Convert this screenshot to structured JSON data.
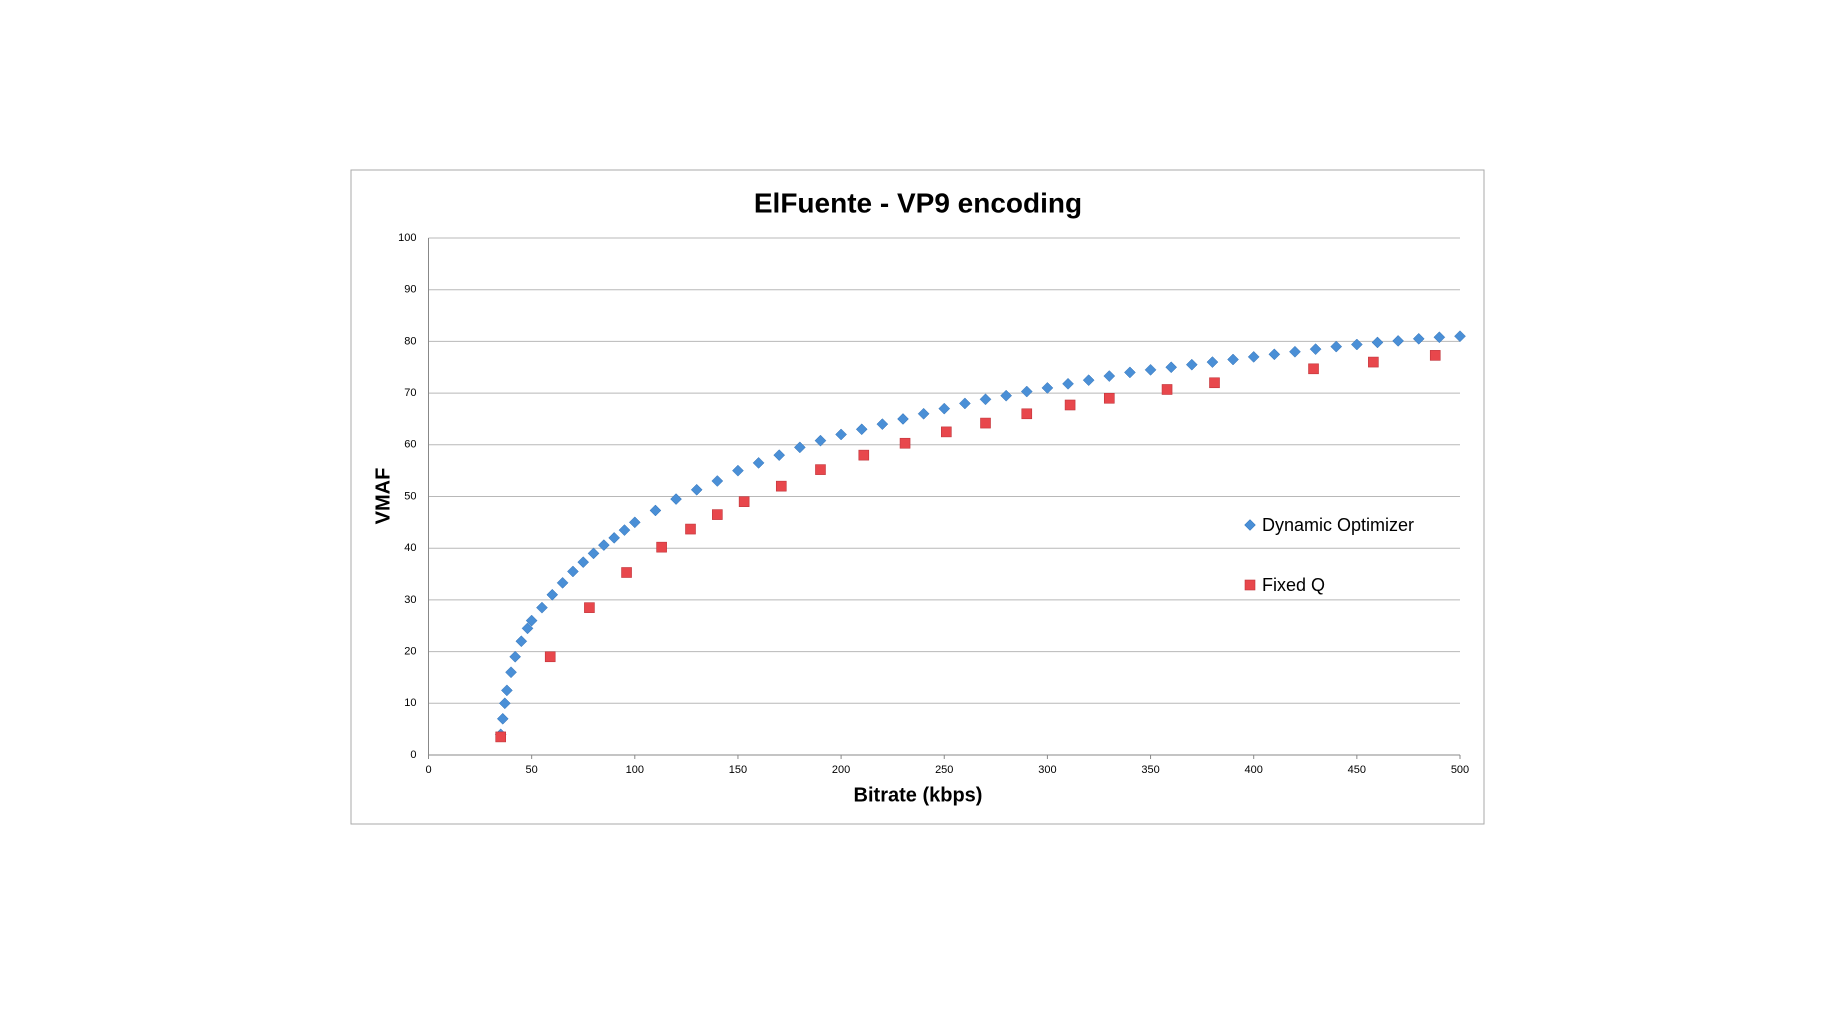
{
  "chart_data": {
    "type": "scatter",
    "title": "ElFuente - VP9 encoding",
    "x_label": "Bitrate (kbps)",
    "y_label": "VMAF",
    "xlim": [
      0,
      500
    ],
    "xticks": [
      0,
      50,
      100,
      150,
      200,
      250,
      300,
      350,
      400,
      450,
      500
    ],
    "ylim": [
      0,
      100
    ],
    "yticks": [
      0,
      10,
      20,
      30,
      40,
      50,
      60,
      70,
      80,
      90,
      100
    ],
    "grid": true,
    "legend": "right",
    "series": [
      {
        "name": "Dynamic Optimizer",
        "color": "#4a8fd6",
        "marker": "diamond",
        "x": [
          35,
          36,
          37,
          38,
          40,
          42,
          45,
          48,
          50,
          55,
          60,
          65,
          70,
          75,
          80,
          85,
          90,
          95,
          100,
          110,
          120,
          130,
          140,
          150,
          160,
          170,
          180,
          190,
          200,
          210,
          220,
          230,
          240,
          250,
          260,
          270,
          280,
          290,
          300,
          310,
          320,
          330,
          340,
          350,
          360,
          370,
          380,
          390,
          400,
          410,
          420,
          430,
          440,
          450,
          460,
          470,
          480,
          490,
          500
        ],
        "values": [
          4,
          7,
          10,
          12.5,
          16,
          19,
          22,
          24.5,
          26,
          28.5,
          31,
          33.3,
          35.5,
          37.3,
          39,
          40.6,
          42,
          43.5,
          45,
          47.3,
          49.5,
          51.3,
          53,
          55,
          56.5,
          58,
          59.5,
          60.8,
          62,
          63,
          64,
          65,
          66,
          67,
          68,
          68.8,
          69.5,
          70.3,
          71,
          71.8,
          72.5,
          73.3,
          74,
          74.5,
          75,
          75.5,
          76,
          76.5,
          77,
          77.5,
          78,
          78.5,
          79,
          79.4,
          79.8,
          80.1,
          80.5,
          80.8,
          81
        ]
      },
      {
        "name": "Fixed Q",
        "color": "#e8474c",
        "marker": "square",
        "x": [
          35,
          59,
          78,
          96,
          113,
          127,
          140,
          153,
          171,
          190,
          211,
          231,
          251,
          270,
          290,
          311,
          330,
          358,
          381,
          429,
          458,
          488
        ],
        "values": [
          3.5,
          19,
          28.5,
          35.3,
          40.2,
          43.7,
          46.5,
          49,
          52,
          55.2,
          58,
          60.3,
          62.5,
          64.2,
          66,
          67.7,
          69,
          70.7,
          72,
          74.7,
          76,
          77.3
        ]
      }
    ]
  }
}
